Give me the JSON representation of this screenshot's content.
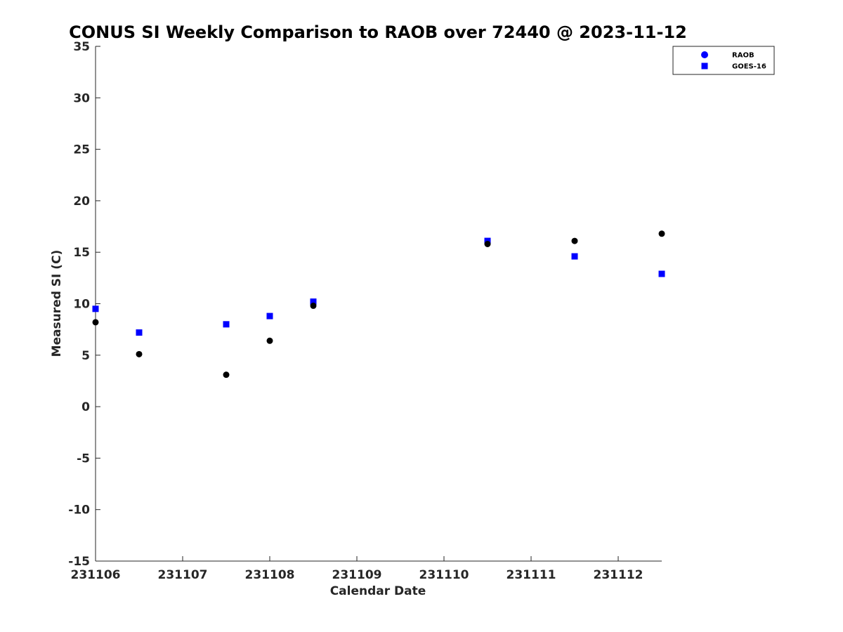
{
  "chart_data": {
    "type": "scatter",
    "title": "CONUS SI Weekly Comparison to RAOB over 72440 @ 2023-11-12",
    "xlabel": "Calendar Date",
    "ylabel": "Measured SI (C)",
    "xlim": [
      0,
      6.5
    ],
    "ylim": [
      -15,
      35
    ],
    "x_ticks": [
      0,
      1,
      2,
      3,
      4,
      5,
      6
    ],
    "x_tick_labels": [
      "231106",
      "231107",
      "231108",
      "231109",
      "231110",
      "231111",
      "231112"
    ],
    "y_ticks": [
      -15,
      -10,
      -5,
      0,
      5,
      10,
      15,
      20,
      25,
      30,
      35
    ],
    "y_tick_labels": [
      "-15",
      "-10",
      "-5",
      "0",
      "5",
      "10",
      "15",
      "20",
      "25",
      "30",
      "35"
    ],
    "grid": false,
    "legend_position": "top-right",
    "series": [
      {
        "name": "RAOB",
        "marker": "circle",
        "color": "#000000",
        "legend_color": "#0000ff",
        "x": [
          0,
          0.5,
          1.5,
          2,
          2.5,
          4.5,
          5.5,
          6.5
        ],
        "y": [
          8.2,
          5.1,
          3.1,
          6.4,
          9.8,
          15.8,
          16.1,
          16.8
        ]
      },
      {
        "name": "GOES-16",
        "marker": "square",
        "color": "#0000ff",
        "x": [
          0,
          0.5,
          1.5,
          2,
          2.5,
          4.5,
          5.5,
          6.5
        ],
        "y": [
          9.5,
          7.2,
          8.0,
          8.8,
          10.2,
          16.1,
          14.6,
          12.9
        ]
      }
    ]
  }
}
